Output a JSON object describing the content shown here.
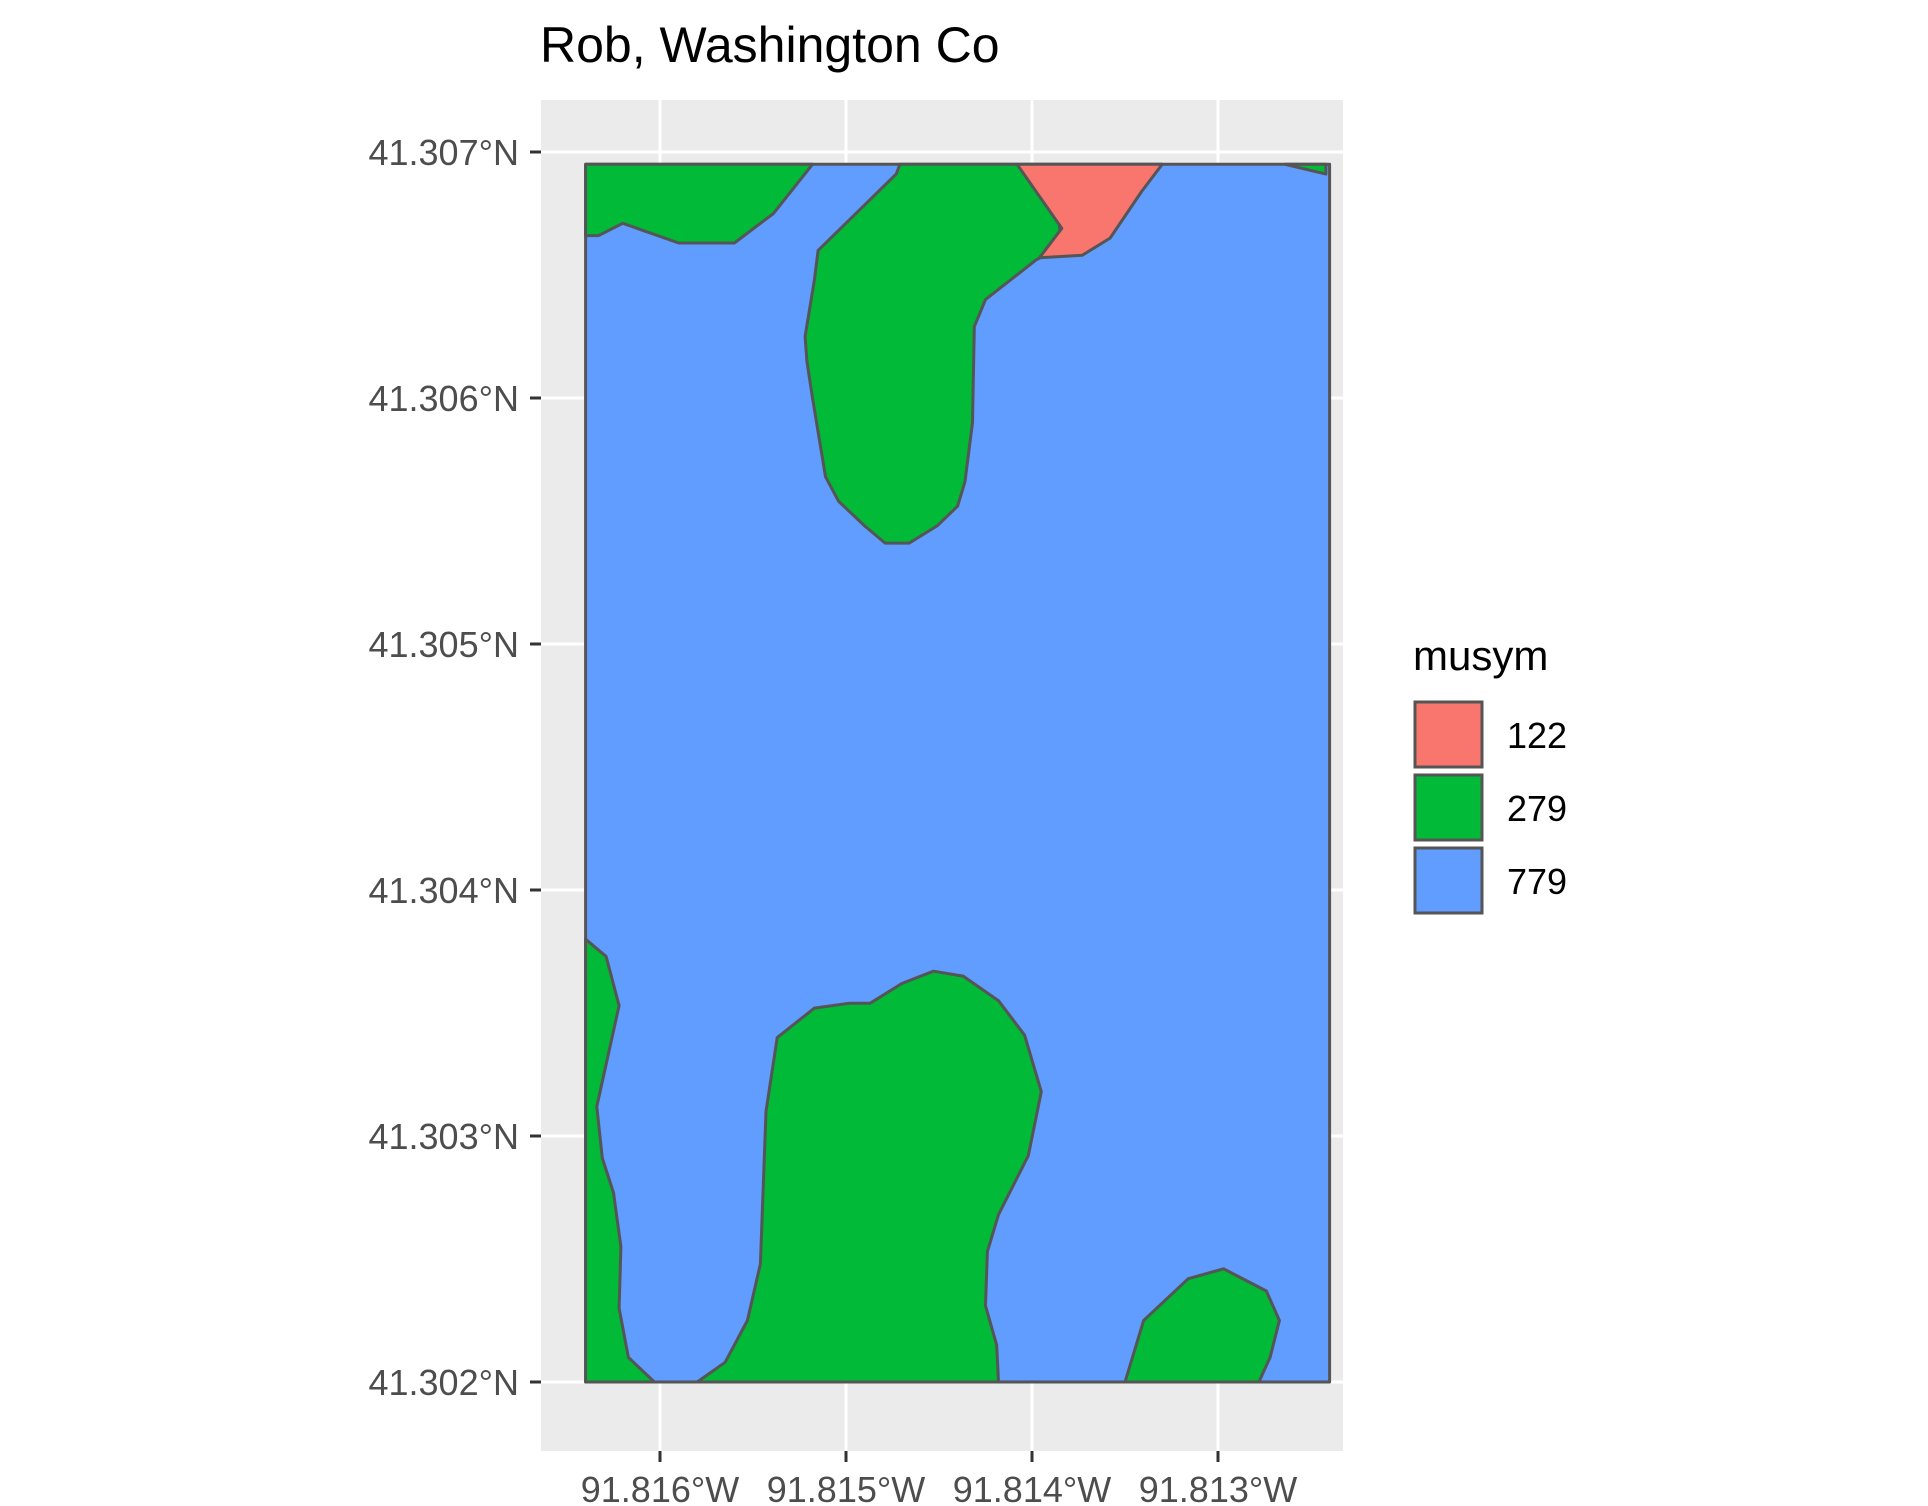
{
  "title": "Rob, Washington Co",
  "chart_data": {
    "type": "map",
    "title": "Rob, Washington Co",
    "xlabel": "",
    "ylabel": "",
    "xlim": [
      -91.8164,
      -91.8124
    ],
    "ylim": [
      41.302,
      41.30695
    ],
    "grid": true,
    "legend_placement": "right",
    "x_ticks": [
      {
        "value": -91.816,
        "label": "91.816°W"
      },
      {
        "value": -91.815,
        "label": "91.815°W"
      },
      {
        "value": -91.814,
        "label": "91.814°W"
      },
      {
        "value": -91.813,
        "label": "91.813°W"
      }
    ],
    "y_ticks": [
      {
        "value": 41.307,
        "label": "41.307°N"
      },
      {
        "value": 41.306,
        "label": "41.306°N"
      },
      {
        "value": 41.305,
        "label": "41.305°N"
      },
      {
        "value": 41.304,
        "label": "41.304°N"
      },
      {
        "value": 41.303,
        "label": "41.303°N"
      },
      {
        "value": 41.302,
        "label": "41.302°N"
      }
    ],
    "legend": {
      "title": "musym",
      "items": [
        {
          "label": "122",
          "color": "#F8766D"
        },
        {
          "label": "279",
          "color": "#00BA38"
        },
        {
          "label": "779",
          "color": "#619CFF"
        }
      ]
    },
    "polygons": [
      {
        "musym": "779",
        "coords": [
          [
            -91.8164,
            41.30695
          ],
          [
            -91.8124,
            41.30695
          ],
          [
            -91.8124,
            41.302
          ],
          [
            -91.8164,
            41.302
          ]
        ]
      },
      {
        "musym": "279",
        "coords": [
          [
            -91.8164,
            41.30695
          ],
          [
            -91.81518,
            41.30695
          ],
          [
            -91.81539,
            41.30675
          ],
          [
            -91.8156,
            41.30663
          ],
          [
            -91.8159,
            41.30663
          ],
          [
            -91.8162,
            41.30671
          ],
          [
            -91.81633,
            41.30666
          ],
          [
            -91.8164,
            41.30666
          ]
        ]
      },
      {
        "musym": "279",
        "coords": [
          [
            -91.81471,
            41.30695
          ],
          [
            -91.81408,
            41.30695
          ],
          [
            -91.81386,
            41.30675
          ],
          [
            -91.81384,
            41.30662
          ],
          [
            -91.81398,
            41.30656
          ],
          [
            -91.81425,
            41.3064
          ],
          [
            -91.81431,
            41.30629
          ],
          [
            -91.81432,
            41.3059
          ],
          [
            -91.81436,
            41.30566
          ],
          [
            -91.8144,
            41.30556
          ],
          [
            -91.81451,
            41.30548
          ],
          [
            -91.81466,
            41.30541
          ],
          [
            -91.81479,
            41.30541
          ],
          [
            -91.8149,
            41.30548
          ],
          [
            -91.81504,
            41.30558
          ],
          [
            -91.81511,
            41.30568
          ],
          [
            -91.81518,
            41.306
          ],
          [
            -91.81521,
            41.30615
          ],
          [
            -91.81522,
            41.30625
          ],
          [
            -91.81517,
            41.30648
          ],
          [
            -91.81515,
            41.3066
          ],
          [
            -91.81473,
            41.30691
          ]
        ]
      },
      {
        "musym": "122",
        "coords": [
          [
            -91.81408,
            41.30695
          ],
          [
            -91.8133,
            41.30695
          ],
          [
            -91.81341,
            41.30684
          ],
          [
            -91.81358,
            41.30665
          ],
          [
            -91.81373,
            41.30658
          ],
          [
            -91.81396,
            41.30657
          ],
          [
            -91.81384,
            41.30669
          ]
        ]
      },
      {
        "musym": "279",
        "coords": [
          [
            -91.81264,
            41.30695
          ],
          [
            -91.81242,
            41.30695
          ],
          [
            -91.81242,
            41.30691
          ]
        ]
      },
      {
        "musym": "279",
        "coords": [
          [
            -91.8164,
            41.3038
          ],
          [
            -91.81629,
            41.30373
          ],
          [
            -91.81622,
            41.30353
          ],
          [
            -91.81634,
            41.30312
          ],
          [
            -91.81631,
            41.30291
          ],
          [
            -91.81625,
            41.30277
          ],
          [
            -91.81621,
            41.30255
          ],
          [
            -91.81622,
            41.3023
          ],
          [
            -91.81617,
            41.3021
          ],
          [
            -91.81603,
            41.302
          ],
          [
            -91.8164,
            41.302
          ]
        ]
      },
      {
        "musym": "279",
        "coords": [
          [
            -91.8158,
            41.302
          ],
          [
            -91.81565,
            41.30208
          ],
          [
            -91.81553,
            41.30225
          ],
          [
            -91.81546,
            41.30248
          ],
          [
            -91.81543,
            41.3031
          ],
          [
            -91.81537,
            41.3034
          ],
          [
            -91.81517,
            41.30352
          ],
          [
            -91.81498,
            41.30354
          ],
          [
            -91.81487,
            41.30354
          ],
          [
            -91.8147,
            41.30362
          ],
          [
            -91.81453,
            41.30367
          ],
          [
            -91.81437,
            41.30365
          ],
          [
            -91.81418,
            41.30355
          ],
          [
            -91.81404,
            41.30341
          ],
          [
            -91.81395,
            41.30318
          ],
          [
            -91.81402,
            41.30292
          ],
          [
            -91.81418,
            41.30268
          ],
          [
            -91.81424,
            41.30253
          ],
          [
            -91.81425,
            41.30231
          ],
          [
            -91.81419,
            41.30215
          ],
          [
            -91.81418,
            41.302
          ]
        ]
      },
      {
        "musym": "279",
        "coords": [
          [
            -91.8135,
            41.302
          ],
          [
            -91.8134,
            41.30225
          ],
          [
            -91.81316,
            41.30242
          ],
          [
            -91.81297,
            41.30246
          ],
          [
            -91.81274,
            41.30237
          ],
          [
            -91.81267,
            41.30225
          ],
          [
            -91.81272,
            41.3021
          ],
          [
            -91.81278,
            41.302
          ]
        ]
      }
    ]
  }
}
